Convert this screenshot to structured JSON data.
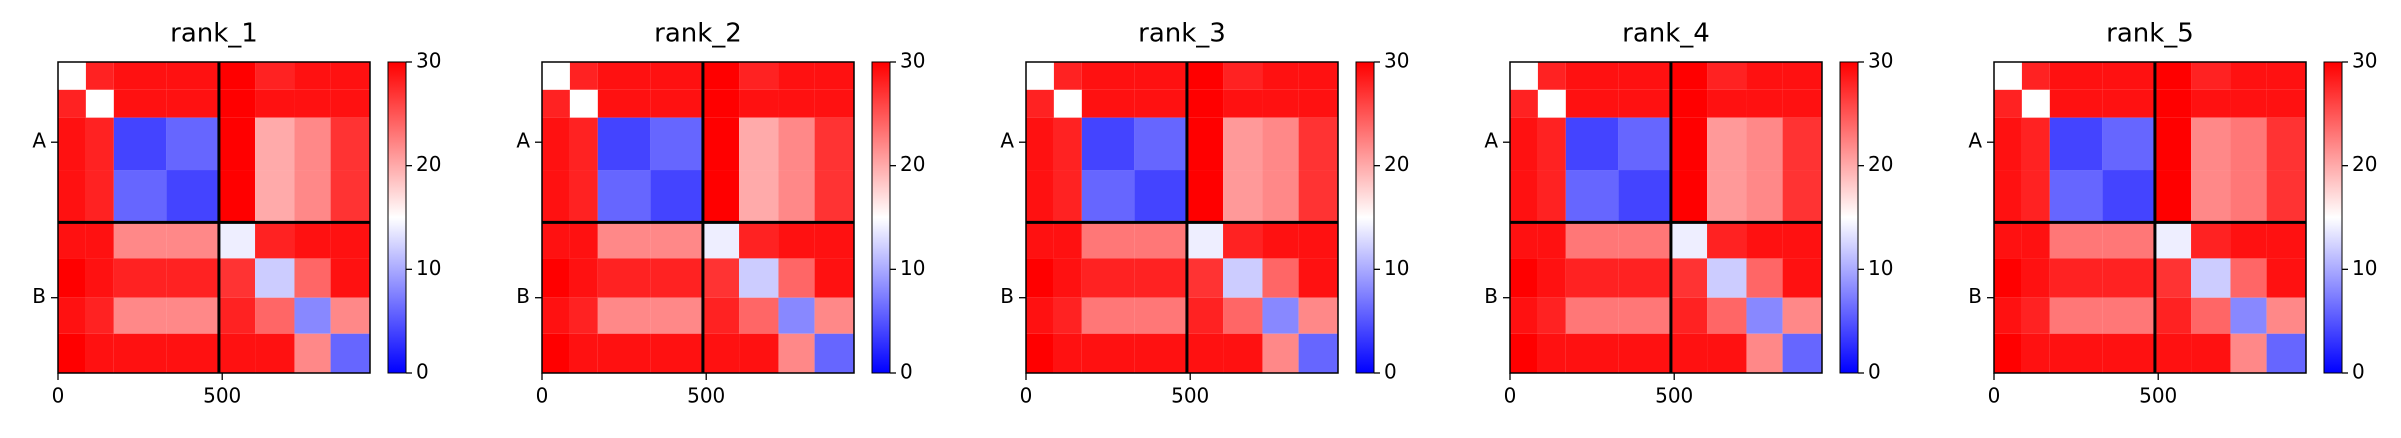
{
  "chart_data": [
    {
      "type": "heatmap",
      "title": "rank_1",
      "bins": [
        0,
        85,
        170,
        330,
        490,
        600,
        720,
        830,
        950
      ],
      "values": [
        [
          15,
          28,
          29,
          29,
          30,
          28,
          29,
          29
        ],
        [
          28,
          15,
          29,
          29,
          30,
          29,
          29,
          29
        ],
        [
          29,
          28,
          4,
          6,
          30,
          20,
          22,
          27
        ],
        [
          29,
          28,
          6,
          4,
          30,
          20,
          22,
          27
        ],
        [
          29,
          29,
          22,
          22,
          14,
          28,
          29,
          29
        ],
        [
          30,
          29,
          28,
          28,
          27,
          12,
          24,
          29
        ],
        [
          29,
          28,
          22,
          22,
          28,
          24,
          8,
          22
        ],
        [
          30,
          29,
          29,
          29,
          29,
          29,
          22,
          6
        ]
      ],
      "xlim": [
        0,
        950
      ],
      "ylim": [
        950,
        0
      ],
      "xticks": [
        0,
        500
      ],
      "yticks": [
        {
          "value": 245,
          "label": "A"
        },
        {
          "value": 720,
          "label": "B"
        }
      ],
      "boundaries": [
        490
      ],
      "clim": [
        0,
        30
      ],
      "cticks": [
        0,
        10,
        20,
        30
      ],
      "colors": [
        "#0000ff",
        "#ffffff",
        "#ff0000"
      ]
    },
    {
      "type": "heatmap",
      "title": "rank_2",
      "bins": [
        0,
        85,
        170,
        330,
        490,
        600,
        720,
        830,
        950
      ],
      "values": [
        [
          15,
          28,
          29,
          29,
          30,
          28,
          29,
          29
        ],
        [
          28,
          15,
          29,
          29,
          30,
          29,
          29,
          29
        ],
        [
          29,
          28,
          4,
          6,
          30,
          20,
          22,
          27
        ],
        [
          29,
          28,
          6,
          4,
          30,
          20,
          22,
          27
        ],
        [
          29,
          29,
          22,
          22,
          14,
          28,
          29,
          29
        ],
        [
          30,
          29,
          28,
          28,
          27,
          12,
          24,
          29
        ],
        [
          29,
          28,
          22,
          22,
          28,
          24,
          8,
          22
        ],
        [
          30,
          29,
          29,
          29,
          29,
          29,
          22,
          6
        ]
      ],
      "xlim": [
        0,
        950
      ],
      "ylim": [
        950,
        0
      ],
      "xticks": [
        0,
        500
      ],
      "yticks": [
        {
          "value": 245,
          "label": "A"
        },
        {
          "value": 720,
          "label": "B"
        }
      ],
      "boundaries": [
        490
      ],
      "clim": [
        0,
        30
      ],
      "cticks": [
        0,
        10,
        20,
        30
      ],
      "colors": [
        "#0000ff",
        "#ffffff",
        "#ff0000"
      ]
    },
    {
      "type": "heatmap",
      "title": "rank_3",
      "bins": [
        0,
        85,
        170,
        330,
        490,
        600,
        720,
        830,
        950
      ],
      "values": [
        [
          15,
          28,
          29,
          29,
          30,
          28,
          29,
          29
        ],
        [
          28,
          15,
          29,
          29,
          30,
          29,
          29,
          29
        ],
        [
          29,
          28,
          4,
          6,
          30,
          21,
          22,
          27
        ],
        [
          29,
          28,
          6,
          4,
          30,
          21,
          22,
          27
        ],
        [
          29,
          29,
          23,
          23,
          14,
          28,
          29,
          29
        ],
        [
          30,
          29,
          28,
          28,
          27,
          12,
          24,
          29
        ],
        [
          29,
          28,
          23,
          23,
          28,
          24,
          8,
          22
        ],
        [
          30,
          29,
          29,
          29,
          29,
          29,
          22,
          6
        ]
      ],
      "xlim": [
        0,
        950
      ],
      "ylim": [
        950,
        0
      ],
      "xticks": [
        0,
        500
      ],
      "yticks": [
        {
          "value": 245,
          "label": "A"
        },
        {
          "value": 720,
          "label": "B"
        }
      ],
      "boundaries": [
        490
      ],
      "clim": [
        0,
        30
      ],
      "cticks": [
        0,
        10,
        20,
        30
      ],
      "colors": [
        "#0000ff",
        "#ffffff",
        "#ff0000"
      ]
    },
    {
      "type": "heatmap",
      "title": "rank_4",
      "bins": [
        0,
        85,
        170,
        330,
        490,
        600,
        720,
        830,
        950
      ],
      "values": [
        [
          15,
          28,
          29,
          29,
          30,
          28,
          29,
          29
        ],
        [
          28,
          15,
          29,
          29,
          30,
          29,
          29,
          29
        ],
        [
          29,
          28,
          4,
          6,
          30,
          21,
          22,
          27
        ],
        [
          29,
          28,
          6,
          4,
          30,
          21,
          22,
          27
        ],
        [
          29,
          29,
          23,
          23,
          14,
          28,
          29,
          29
        ],
        [
          30,
          29,
          28,
          28,
          27,
          12,
          24,
          29
        ],
        [
          29,
          28,
          23,
          23,
          28,
          24,
          8,
          22
        ],
        [
          30,
          29,
          29,
          29,
          29,
          29,
          22,
          6
        ]
      ],
      "xlim": [
        0,
        950
      ],
      "ylim": [
        950,
        0
      ],
      "xticks": [
        0,
        500
      ],
      "yticks": [
        {
          "value": 245,
          "label": "A"
        },
        {
          "value": 720,
          "label": "B"
        }
      ],
      "boundaries": [
        490
      ],
      "clim": [
        0,
        30
      ],
      "cticks": [
        0,
        10,
        20,
        30
      ],
      "colors": [
        "#0000ff",
        "#ffffff",
        "#ff0000"
      ]
    },
    {
      "type": "heatmap",
      "title": "rank_5",
      "bins": [
        0,
        85,
        170,
        330,
        490,
        600,
        720,
        830,
        950
      ],
      "values": [
        [
          15,
          28,
          29,
          29,
          30,
          28,
          29,
          29
        ],
        [
          28,
          15,
          29,
          29,
          30,
          29,
          29,
          29
        ],
        [
          29,
          28,
          4,
          6,
          30,
          22,
          23,
          27
        ],
        [
          29,
          28,
          6,
          4,
          30,
          22,
          23,
          27
        ],
        [
          29,
          29,
          23,
          23,
          14,
          28,
          29,
          29
        ],
        [
          30,
          29,
          28,
          28,
          27,
          12,
          24,
          29
        ],
        [
          29,
          28,
          23,
          23,
          28,
          24,
          8,
          22
        ],
        [
          30,
          29,
          29,
          29,
          29,
          29,
          22,
          6
        ]
      ],
      "xlim": [
        0,
        950
      ],
      "ylim": [
        950,
        0
      ],
      "xticks": [
        0,
        500
      ],
      "yticks": [
        {
          "value": 245,
          "label": "A"
        },
        {
          "value": 720,
          "label": "B"
        }
      ],
      "boundaries": [
        490
      ],
      "clim": [
        0,
        30
      ],
      "cticks": [
        0,
        10,
        20,
        30
      ],
      "colors": [
        "#0000ff",
        "#ffffff",
        "#ff0000"
      ]
    }
  ]
}
